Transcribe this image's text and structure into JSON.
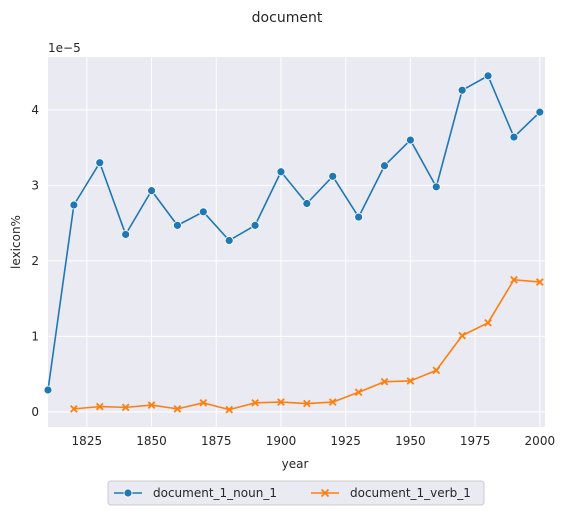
{
  "chart_data": {
    "type": "line",
    "title": "document",
    "xlabel": "year",
    "ylabel": "lexicon%",
    "y_multiplier_label": "1e−5",
    "xlim": [
      1810,
      2002
    ],
    "ylim": [
      -0.2,
      4.7
    ],
    "x_ticks": [
      1825,
      1850,
      1875,
      1900,
      1925,
      1950,
      1975,
      2000
    ],
    "y_ticks": [
      0,
      1,
      2,
      3,
      4
    ],
    "grid": true,
    "legend_position": "bottom-center",
    "series": [
      {
        "name": "document_1_noun_1",
        "color": "#1f77b4",
        "marker": "circle",
        "x": [
          1810,
          1820,
          1830,
          1840,
          1850,
          1860,
          1870,
          1880,
          1890,
          1900,
          1910,
          1920,
          1930,
          1940,
          1950,
          1960,
          1970,
          1980,
          1990,
          2000
        ],
        "y": [
          0.29,
          2.74,
          3.3,
          2.35,
          2.93,
          2.47,
          2.65,
          2.27,
          2.47,
          3.18,
          2.76,
          3.12,
          2.58,
          3.26,
          3.6,
          2.98,
          4.26,
          4.45,
          3.64,
          3.97
        ]
      },
      {
        "name": "document_1_verb_1",
        "color": "#ff7f0e",
        "marker": "x",
        "x": [
          1820,
          1830,
          1840,
          1850,
          1860,
          1870,
          1880,
          1890,
          1900,
          1910,
          1920,
          1930,
          1940,
          1950,
          1960,
          1970,
          1980,
          1990,
          2000
        ],
        "y": [
          0.04,
          0.07,
          0.06,
          0.09,
          0.04,
          0.12,
          0.03,
          0.12,
          0.13,
          0.11,
          0.13,
          0.26,
          0.4,
          0.41,
          0.55,
          1.01,
          1.18,
          1.75,
          1.72
        ]
      }
    ]
  }
}
